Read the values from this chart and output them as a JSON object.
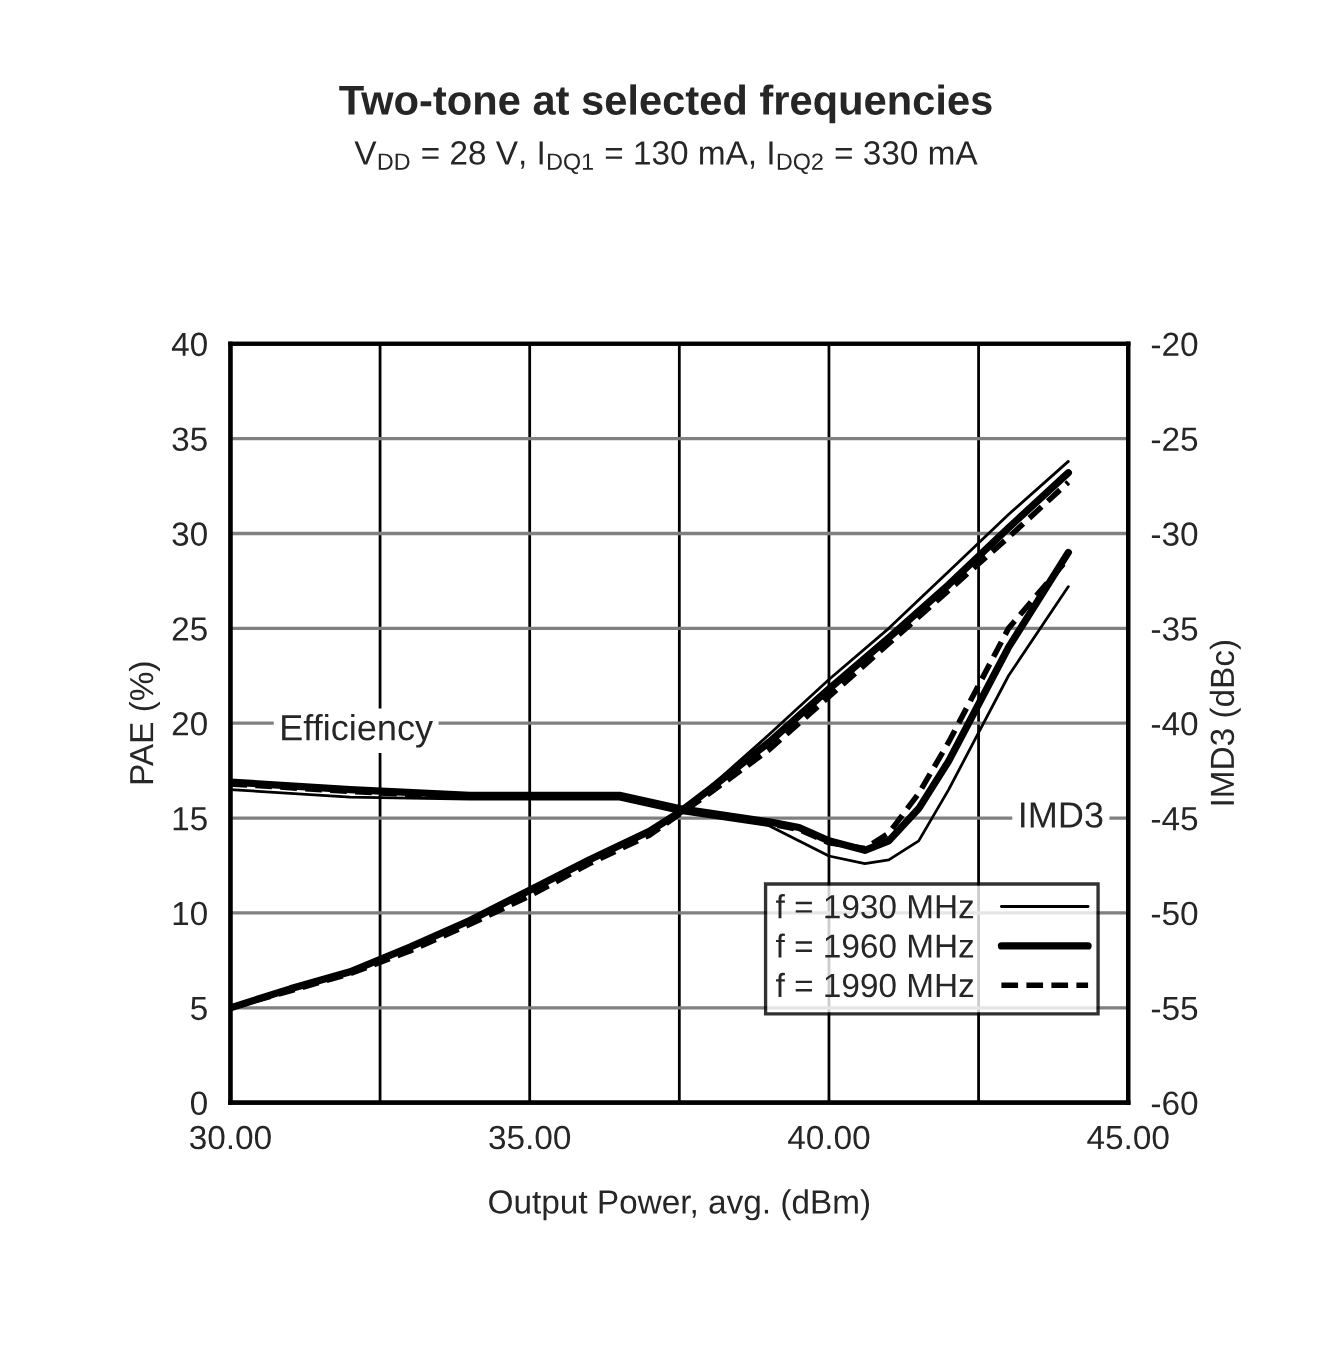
{
  "chart_data": {
    "type": "line",
    "title": "Two-tone at selected frequencies",
    "subtitle": "V$_{DD}$ = 28 V, I$_{DQ1}$ = 130 mA, I$_{DQ2}$ = 330 mA",
    "xlabel": "Output Power, avg. (dBm)",
    "ylabel": "PAE (%)",
    "y2label": "IMD3 (dBc)",
    "xlim": [
      30,
      45
    ],
    "xticks": [
      {
        "value": 30,
        "label": "30.00"
      },
      {
        "value": 32.5,
        "label": null
      },
      {
        "value": 35,
        "label": "35.00"
      },
      {
        "value": 37.5,
        "label": null
      },
      {
        "value": 40,
        "label": "40.00"
      },
      {
        "value": 42.5,
        "label": null
      },
      {
        "value": 45,
        "label": "45.00"
      }
    ],
    "ylim": [
      0,
      40
    ],
    "yticks": [
      0,
      5,
      10,
      15,
      20,
      25,
      30,
      35,
      40
    ],
    "y2lim": [
      -60,
      -20
    ],
    "y2ticks": [
      -60,
      -55,
      -50,
      -45,
      -40,
      -35,
      -30,
      -25,
      -20
    ],
    "grid": true,
    "legend": "bottom right",
    "annotations": [
      "Efficiency",
      "IMD3"
    ],
    "series": [
      {
        "name": "f = 1930 MHz",
        "color": "#000000",
        "line_style": "solid",
        "x": [
          30,
          31,
          32,
          33,
          34,
          35,
          36,
          37,
          37.5,
          38,
          39,
          40,
          41,
          42,
          43,
          44
        ],
        "values": [
          5,
          6,
          6.9,
          8.2,
          9.7,
          11.3,
          12.9,
          14.4,
          15.3,
          16.6,
          19.4,
          22.3,
          25,
          28,
          31,
          33.8
        ]
      },
      {
        "name": "f = 1960 MHz",
        "color": "#000000",
        "line_style": "solid",
        "x": [
          30,
          31,
          32,
          33,
          34,
          35,
          36,
          37,
          37.5,
          38,
          39,
          40,
          41,
          42,
          43,
          44
        ],
        "values": [
          5,
          6,
          6.9,
          8.2,
          9.6,
          11.2,
          12.8,
          14.3,
          15.3,
          16.5,
          19,
          21.8,
          24.5,
          27.3,
          30.3,
          33.2
        ]
      },
      {
        "name": "f = 1990 MHz",
        "color": "#000000",
        "line_style": "dashed",
        "x": [
          30,
          31,
          32,
          33,
          34,
          35,
          36,
          37,
          37.5,
          38,
          39,
          40,
          41,
          42,
          43,
          44
        ],
        "values": [
          5,
          5.9,
          6.8,
          8.0,
          9.4,
          10.9,
          12.6,
          14.1,
          15.2,
          16.3,
          18.6,
          21.4,
          24.2,
          27,
          29.8,
          32.7
        ]
      },
      {
        "axis": "y2",
        "color": "#000000",
        "line_style": "solid",
        "x": [
          30,
          32,
          34,
          36.5,
          37.5,
          39,
          40,
          40.6,
          41,
          41.5,
          42,
          42.5,
          43,
          44
        ],
        "values": [
          -43.5,
          -43.9,
          -44,
          -44,
          -44.7,
          -45.4,
          -47,
          -47.4,
          -47.2,
          -46.2,
          -43.5,
          -40.5,
          -37.5,
          -32.8
        ]
      },
      {
        "axis": "y2",
        "color": "#000000",
        "line_style": "solid",
        "x": [
          30,
          32,
          34,
          36.5,
          37.5,
          39,
          39.5,
          40,
          40.6,
          41,
          41.5,
          42,
          42.5,
          43,
          44
        ],
        "values": [
          -43.1,
          -43.5,
          -43.8,
          -43.8,
          -44.5,
          -45.2,
          -45.5,
          -46.2,
          -46.7,
          -46.2,
          -44.5,
          -42,
          -39,
          -36,
          -31
        ]
      },
      {
        "axis": "y2",
        "color": "#000000",
        "line_style": "dashed",
        "x": [
          30,
          32,
          34,
          36.5,
          37.5,
          39,
          39.5,
          40,
          40.6,
          41,
          41.5,
          42,
          42.5,
          43,
          44
        ],
        "values": [
          -43.2,
          -43.6,
          -43.9,
          -43.9,
          -44.5,
          -45.3,
          -45.6,
          -46.3,
          -46.6,
          -45.8,
          -43.7,
          -41,
          -38,
          -35,
          -31.3
        ]
      }
    ]
  }
}
